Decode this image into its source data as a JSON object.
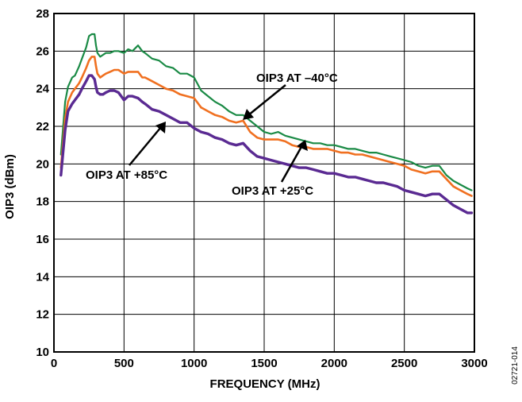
{
  "figure_id": "02721-014",
  "chart_data": {
    "type": "line",
    "xlabel": "FREQUENCY (MHz)",
    "ylabel": "OIP3 (dBm)",
    "xlim": [
      0,
      3000
    ],
    "ylim": [
      10,
      28
    ],
    "xticks": [
      0,
      500,
      1000,
      1500,
      2000,
      2500,
      3000
    ],
    "yticks": [
      10,
      12,
      14,
      16,
      18,
      20,
      22,
      24,
      26,
      28
    ],
    "grid": true,
    "legend": "none",
    "colors": {
      "m40": "#1a8a45",
      "p25": "#f07020",
      "p85": "#5a2a92"
    },
    "annotations": [
      {
        "text": "OIP3 AT –40°C",
        "series": 0
      },
      {
        "text": "OIP3 AT +25°C",
        "series": 1
      },
      {
        "text": "OIP3 AT +85°C",
        "series": 2
      }
    ],
    "series": [
      {
        "color": "#1a8a45",
        "x": [
          50,
          80,
          100,
          130,
          150,
          180,
          200,
          230,
          250,
          270,
          290,
          300,
          310,
          330,
          350,
          370,
          400,
          430,
          460,
          500,
          530,
          560,
          600,
          630,
          650,
          700,
          750,
          800,
          850,
          900,
          950,
          1000,
          1050,
          1100,
          1150,
          1200,
          1250,
          1300,
          1350,
          1400,
          1450,
          1500,
          1550,
          1600,
          1650,
          1700,
          1750,
          1800,
          1850,
          1900,
          1950,
          2000,
          2050,
          2100,
          2150,
          2200,
          2250,
          2300,
          2350,
          2400,
          2450,
          2500,
          2550,
          2600,
          2650,
          2700,
          2750,
          2800,
          2850,
          2900,
          2950,
          2980
        ],
        "y": [
          20.5,
          23.3,
          24.1,
          24.6,
          24.7,
          25.2,
          25.6,
          26.2,
          26.8,
          26.9,
          26.9,
          26.3,
          25.9,
          25.7,
          25.8,
          25.9,
          25.9,
          26.0,
          26.0,
          25.9,
          26.1,
          26.0,
          26.3,
          26.0,
          25.9,
          25.6,
          25.5,
          25.2,
          25.1,
          24.8,
          24.8,
          24.6,
          23.9,
          23.6,
          23.3,
          23.1,
          22.8,
          22.6,
          22.6,
          22.3,
          22.0,
          21.7,
          21.6,
          21.7,
          21.5,
          21.4,
          21.3,
          21.2,
          21.1,
          21.1,
          21.0,
          21.0,
          20.9,
          20.8,
          20.8,
          20.7,
          20.6,
          20.6,
          20.5,
          20.4,
          20.3,
          20.2,
          20.1,
          19.9,
          19.8,
          19.9,
          19.9,
          19.4,
          19.1,
          18.9,
          18.7,
          18.6
        ]
      },
      {
        "color": "#f07020",
        "x": [
          50,
          80,
          100,
          130,
          150,
          180,
          200,
          230,
          250,
          270,
          290,
          300,
          310,
          330,
          350,
          370,
          400,
          430,
          460,
          500,
          530,
          560,
          600,
          630,
          650,
          700,
          750,
          800,
          850,
          900,
          950,
          1000,
          1050,
          1100,
          1150,
          1200,
          1250,
          1300,
          1350,
          1400,
          1450,
          1500,
          1550,
          1600,
          1650,
          1700,
          1750,
          1800,
          1850,
          1900,
          1950,
          2000,
          2050,
          2100,
          2150,
          2200,
          2250,
          2300,
          2350,
          2400,
          2450,
          2500,
          2550,
          2600,
          2650,
          2700,
          2750,
          2800,
          2850,
          2900,
          2950,
          2980
        ],
        "y": [
          19.8,
          22.4,
          23.3,
          23.8,
          24.0,
          24.3,
          24.6,
          25.1,
          25.5,
          25.7,
          25.7,
          25.2,
          24.8,
          24.6,
          24.7,
          24.8,
          24.9,
          25.0,
          25.0,
          24.8,
          24.9,
          24.9,
          24.9,
          24.6,
          24.6,
          24.4,
          24.2,
          24.0,
          23.9,
          23.7,
          23.6,
          23.5,
          23.0,
          22.8,
          22.6,
          22.5,
          22.3,
          22.2,
          22.3,
          21.7,
          21.4,
          21.3,
          21.3,
          21.3,
          21.2,
          21.0,
          20.9,
          20.9,
          20.8,
          20.8,
          20.8,
          20.7,
          20.6,
          20.6,
          20.5,
          20.5,
          20.4,
          20.3,
          20.2,
          20.1,
          20.0,
          19.9,
          19.7,
          19.6,
          19.5,
          19.6,
          19.6,
          19.2,
          18.8,
          18.6,
          18.4,
          18.3
        ]
      },
      {
        "color": "#5a2a92",
        "x": [
          50,
          80,
          100,
          130,
          150,
          180,
          200,
          230,
          250,
          270,
          290,
          300,
          310,
          330,
          350,
          370,
          400,
          430,
          460,
          500,
          530,
          560,
          600,
          630,
          650,
          700,
          750,
          800,
          850,
          900,
          950,
          1000,
          1050,
          1100,
          1150,
          1200,
          1250,
          1300,
          1350,
          1400,
          1450,
          1500,
          1550,
          1600,
          1650,
          1700,
          1750,
          1800,
          1850,
          1900,
          1950,
          2000,
          2050,
          2100,
          2150,
          2200,
          2250,
          2300,
          2350,
          2400,
          2450,
          2500,
          2550,
          2600,
          2650,
          2700,
          2750,
          2800,
          2850,
          2900,
          2950,
          2980
        ],
        "y": [
          19.4,
          21.8,
          22.8,
          23.2,
          23.4,
          23.7,
          24.0,
          24.4,
          24.7,
          24.7,
          24.5,
          24.1,
          23.8,
          23.7,
          23.7,
          23.8,
          23.9,
          23.9,
          23.8,
          23.4,
          23.6,
          23.6,
          23.5,
          23.3,
          23.2,
          22.9,
          22.8,
          22.6,
          22.4,
          22.2,
          22.2,
          21.9,
          21.7,
          21.6,
          21.4,
          21.3,
          21.1,
          21.0,
          21.1,
          20.7,
          20.4,
          20.3,
          20.2,
          20.1,
          20.0,
          19.9,
          19.8,
          19.8,
          19.7,
          19.6,
          19.5,
          19.5,
          19.4,
          19.3,
          19.3,
          19.2,
          19.1,
          19.0,
          19.0,
          18.9,
          18.8,
          18.6,
          18.5,
          18.4,
          18.3,
          18.4,
          18.4,
          18.1,
          17.8,
          17.6,
          17.4,
          17.4
        ]
      }
    ]
  }
}
